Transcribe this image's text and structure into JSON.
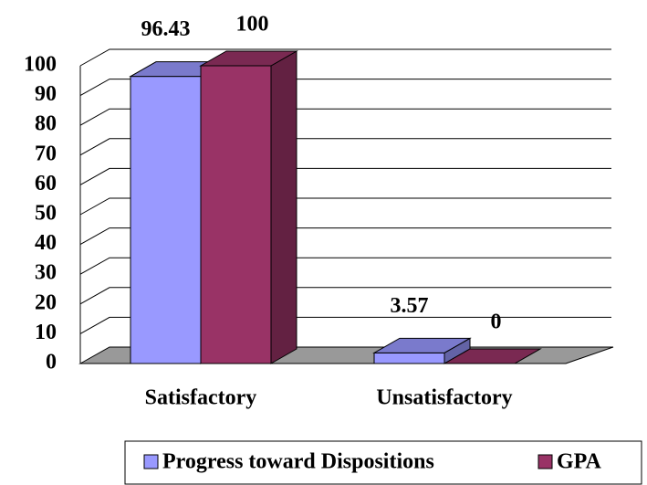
{
  "chart_data": {
    "type": "bar3d",
    "categories": [
      "Satisfactory",
      "Unsatisfactory"
    ],
    "series": [
      {
        "name": "Progress toward Dispositions",
        "color": "#9999ff",
        "values": [
          96.43,
          3.57
        ]
      },
      {
        "name": "GPA",
        "color": "#993366",
        "values": [
          100,
          0
        ]
      }
    ],
    "ylim": [
      0,
      100
    ],
    "yticks": [
      0,
      10,
      20,
      30,
      40,
      50,
      60,
      70,
      80,
      90,
      100
    ],
    "grid": true,
    "legend": "bottom"
  }
}
